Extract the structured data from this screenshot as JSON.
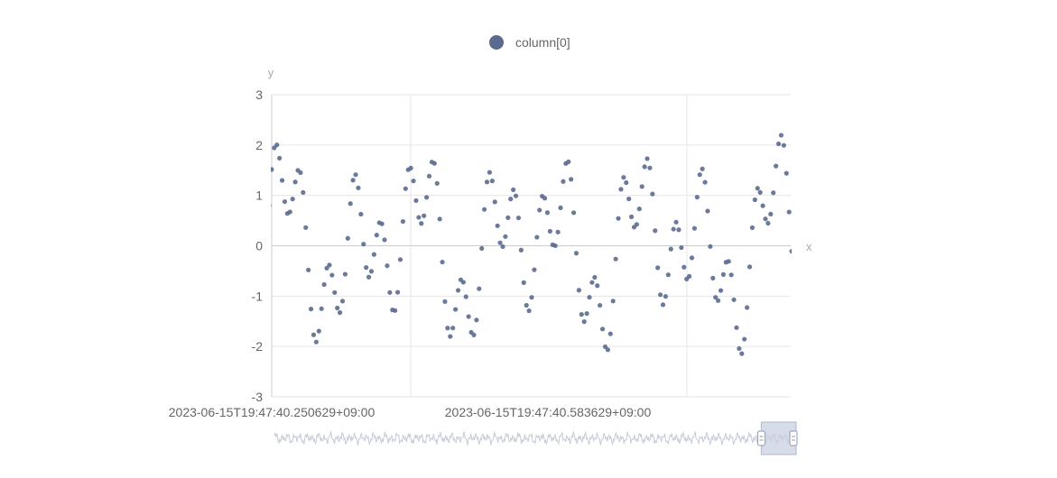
{
  "chart_data": {
    "type": "scatter",
    "legend": {
      "entries": [
        "column[0]"
      ],
      "placement": "top-center"
    },
    "series": [
      {
        "name": "column[0]",
        "color": "#5b6b8f",
        "point_count": 720
      }
    ],
    "xlabel": "x",
    "ylabel": "y",
    "ylim": [
      -3,
      3
    ],
    "y_ticks": [
      "3",
      "2",
      "1",
      "0",
      "-1",
      "-2",
      "-3"
    ],
    "x_tick_labels": [
      "2023-06-15T19:47:40.250629+09:00",
      "2023-06-15T19:47:40.583629+09:00"
    ],
    "grid": true,
    "data_zoom": {
      "present": true,
      "window_start": 0.935,
      "window_end": 1.0
    }
  }
}
